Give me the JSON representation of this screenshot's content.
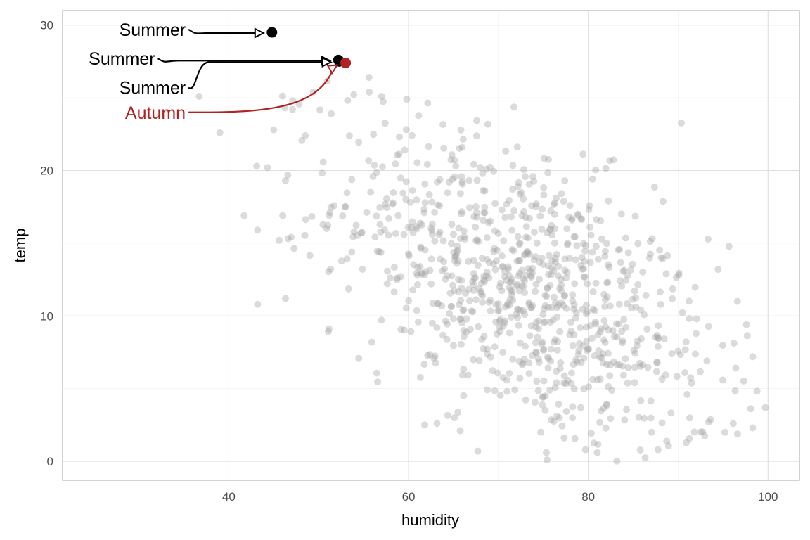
{
  "chart_data": {
    "type": "scatter",
    "xlabel": "humidity",
    "ylabel": "temp",
    "xlim": [
      21.5,
      103.5
    ],
    "ylim": [
      -1.3,
      31.0
    ],
    "x_ticks": [
      40,
      60,
      80,
      100
    ],
    "y_ticks": [
      0,
      10,
      20,
      30
    ],
    "grid": true,
    "colors": {
      "background_points": "#a6a6a6",
      "summer": "#000000",
      "autumn": "#b22222",
      "grid": "#dedede",
      "panel_border": "#b3b3b3"
    },
    "highlighted": [
      {
        "label": "Summer",
        "x": 44.8,
        "y": 29.5,
        "color": "#000000",
        "label_x": 35.2,
        "label_y": 29.7
      },
      {
        "label": "Summer",
        "x": 52.2,
        "y": 27.6,
        "color": "#000000",
        "label_x": 31.8,
        "label_y": 27.7
      },
      {
        "label": "Summer",
        "x": 52.3,
        "y": 27.5,
        "color": "#000000",
        "label_x": 35.2,
        "label_y": 25.7
      },
      {
        "label": "Autumn",
        "x": 53.0,
        "y": 27.4,
        "color": "#b22222",
        "label_x": 35.2,
        "label_y": 24.0
      }
    ],
    "background_points": {
      "count": 900,
      "x_mean": 73.0,
      "x_sd": 10.5,
      "y_intercept": 33.0,
      "y_slope": -0.29,
      "y_sd": 4.8,
      "x_range": [
        36,
        100
      ],
      "y_range": [
        0,
        26.5
      ],
      "extra": [
        [
          36.7,
          25.1
        ],
        [
          39.0,
          22.6
        ],
        [
          41.7,
          16.9
        ],
        [
          43.1,
          20.3
        ],
        [
          43.2,
          15.9
        ],
        [
          43.2,
          10.8
        ],
        [
          44.3,
          20.2
        ],
        [
          46.3,
          19.3
        ],
        [
          46.3,
          11.2
        ],
        [
          45.0,
          22.8
        ],
        [
          45.6,
          15.2
        ],
        [
          46.0,
          16.9
        ],
        [
          47.1,
          24.8
        ],
        [
          48.5,
          22.4
        ],
        [
          49.4,
          25.4
        ],
        [
          51.4,
          23.9
        ],
        [
          55.6,
          26.4
        ],
        [
          57.0,
          25.1
        ],
        [
          59.8,
          24.9
        ],
        [
          75.4,
          0.1
        ],
        [
          81.0,
          0.6
        ],
        [
          67.7,
          0.7
        ],
        [
          61.8,
          2.5
        ],
        [
          99.7,
          3.7
        ],
        [
          98.3,
          2.3
        ],
        [
          96.6,
          11.0
        ],
        [
          97.6,
          9.4
        ],
        [
          98.3,
          7.2
        ],
        [
          93.4,
          2.7
        ],
        [
          95.2,
          2.0
        ]
      ]
    }
  }
}
